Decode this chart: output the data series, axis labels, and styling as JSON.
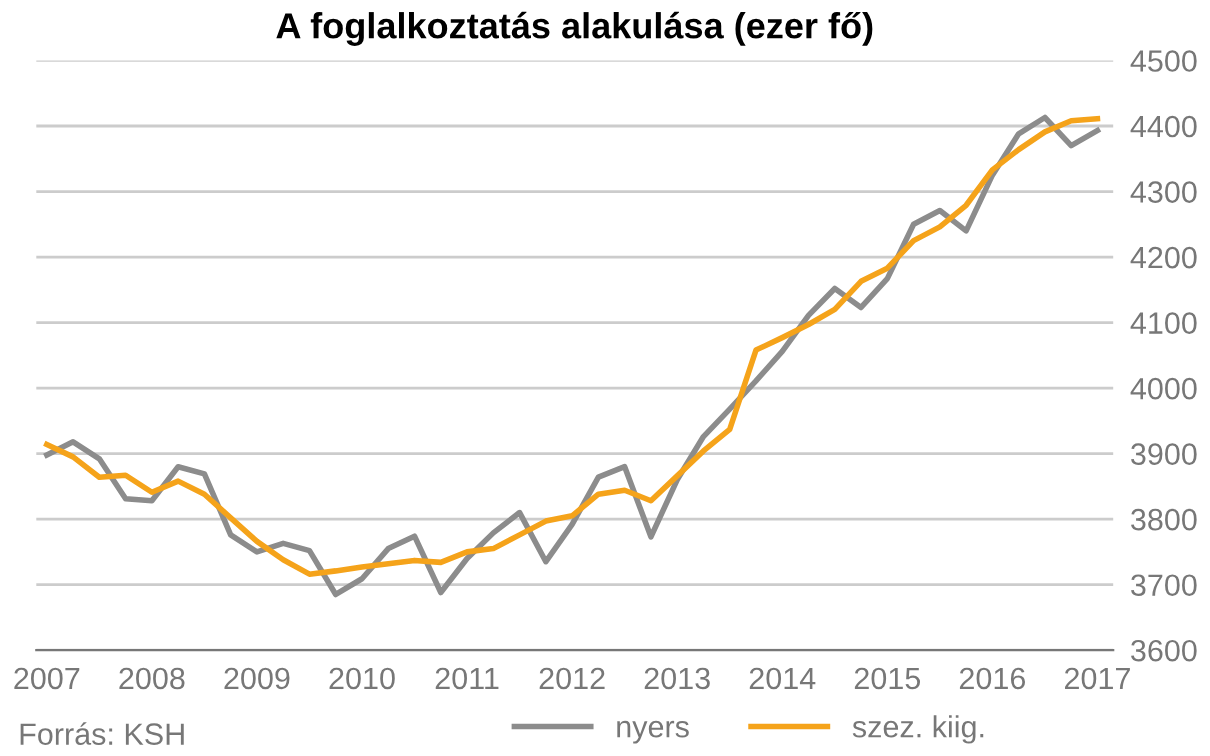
{
  "chart_data": {
    "type": "line",
    "title": "A foglalkoztatás alakulása (ezer fő)",
    "x": [
      2007,
      2007.25,
      2007.5,
      2007.75,
      2008,
      2008.25,
      2008.5,
      2008.75,
      2009,
      2009.25,
      2009.5,
      2009.75,
      2010,
      2010.25,
      2010.5,
      2010.75,
      2011,
      2011.25,
      2011.5,
      2011.75,
      2012,
      2012.25,
      2012.5,
      2012.75,
      2013,
      2013.25,
      2013.5,
      2013.75,
      2014,
      2014.25,
      2014.5,
      2014.75,
      2015,
      2015.25,
      2015.5,
      2015.75,
      2016,
      2016.25,
      2016.5,
      2016.75,
      2017
    ],
    "series": [
      {
        "name": "nyers",
        "color": "#8c8c8c",
        "values": [
          3898,
          3918,
          3892,
          3831,
          3828,
          3880,
          3869,
          3776,
          3750,
          3763,
          3752,
          3685,
          3709,
          3755,
          3774,
          3688,
          3740,
          3779,
          3810,
          3735,
          3792,
          3864,
          3880,
          3773,
          3860,
          3926,
          3968,
          4011,
          4056,
          4111,
          4152,
          4123,
          4167,
          4250,
          4271,
          4240,
          4325,
          4388,
          4413,
          4370,
          4393
        ]
      },
      {
        "name": "szez. kiig.",
        "color": "#f5a31a",
        "values": [
          3914,
          3895,
          3864,
          3867,
          3841,
          3858,
          3838,
          3802,
          3766,
          3738,
          3716,
          3721,
          3727,
          3732,
          3737,
          3734,
          3750,
          3755,
          3776,
          3797,
          3805,
          3838,
          3844,
          3828,
          3866,
          3904,
          3937,
          4058,
          4077,
          4097,
          4120,
          4163,
          4183,
          4225,
          4246,
          4279,
          4333,
          4364,
          4391,
          4408,
          4411
        ]
      }
    ],
    "xlim": [
      2006.9,
      2017.15
    ],
    "xticks": [
      2007,
      2008,
      2009,
      2010,
      2011,
      2012,
      2013,
      2014,
      2015,
      2016,
      2017
    ],
    "ylim": [
      3600,
      4500
    ],
    "yticks": [
      3600,
      3700,
      3800,
      3900,
      4000,
      4100,
      4200,
      4300,
      4400,
      4500
    ],
    "grid": "y",
    "legend": "bottom",
    "marker": "none",
    "line_style": "solid",
    "annotations": [
      "Forrás: KSH"
    ]
  }
}
